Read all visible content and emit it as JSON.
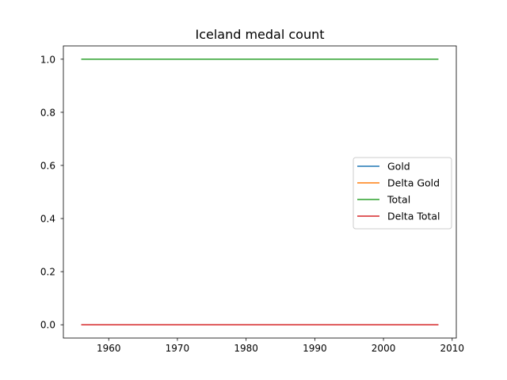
{
  "chart_data": {
    "type": "line",
    "title": "Iceland medal count",
    "xlabel": "",
    "ylabel": "",
    "xlim": [
      1953.4,
      2010.6
    ],
    "ylim": [
      -0.05,
      1.05
    ],
    "xticks": [
      1960,
      1970,
      1980,
      1990,
      2000,
      2010
    ],
    "xtick_labels": [
      "1960",
      "1970",
      "1980",
      "1990",
      "2000",
      "2010"
    ],
    "yticks": [
      0.0,
      0.2,
      0.4,
      0.6,
      0.8,
      1.0
    ],
    "ytick_labels": [
      "0.0",
      "0.2",
      "0.4",
      "0.6",
      "0.8",
      "1.0"
    ],
    "grid": false,
    "legend_position": "center-right",
    "series": [
      {
        "name": "Gold",
        "color": "#1f77b4",
        "x": [
          1956,
          2008
        ],
        "values": [
          0,
          0
        ]
      },
      {
        "name": "Delta Gold",
        "color": "#ff7f0e",
        "x": [
          1956,
          2008
        ],
        "values": [
          0,
          0
        ]
      },
      {
        "name": "Total",
        "color": "#2ca02c",
        "x": [
          1956,
          2008
        ],
        "values": [
          1,
          1
        ]
      },
      {
        "name": "Delta Total",
        "color": "#d62728",
        "x": [
          1956,
          2008
        ],
        "values": [
          0,
          0
        ]
      }
    ]
  }
}
